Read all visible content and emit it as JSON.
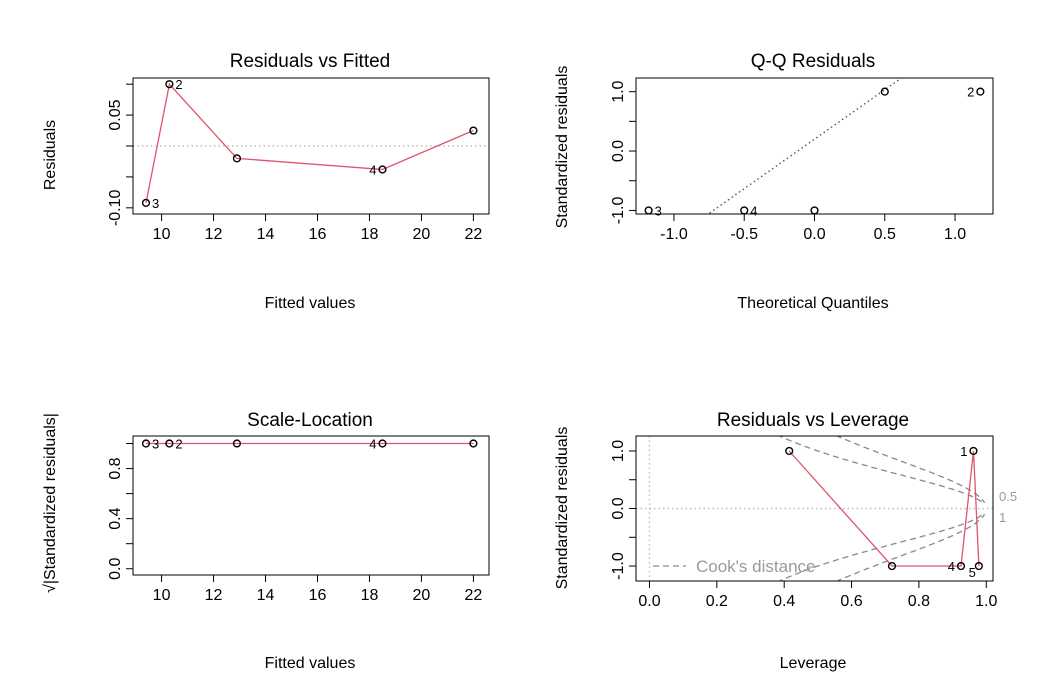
{
  "chart_data": [
    {
      "id": "rvf",
      "type": "scatter",
      "title": "Residuals vs Fitted",
      "xlabel": "Fitted values",
      "ylabel": "Residuals",
      "xlim": [
        8.9,
        22.6
      ],
      "ylim": [
        -0.11,
        0.11
      ],
      "xticks": [
        10,
        12,
        14,
        16,
        18,
        20,
        22
      ],
      "xtick_labels": [
        "10",
        "12",
        "14",
        "16",
        "18",
        "20",
        "22"
      ],
      "yticks": [
        -0.1,
        -0.05,
        0,
        0.05,
        0.1
      ],
      "ytick_labels": [
        "-0.10",
        "",
        "",
        "0.05",
        ""
      ],
      "refline": {
        "type": "h",
        "value": 0
      },
      "points": [
        {
          "x": 9.4,
          "y": -0.092,
          "label": "3",
          "lpos": "right"
        },
        {
          "x": 10.3,
          "y": 0.1,
          "label": "2",
          "lpos": "right"
        },
        {
          "x": 12.9,
          "y": -0.02,
          "label": "",
          "lpos": "right"
        },
        {
          "x": 18.5,
          "y": -0.038,
          "label": "4",
          "lpos": "left"
        },
        {
          "x": 22.0,
          "y": 0.025,
          "label": "",
          "lpos": "right"
        }
      ],
      "smoother": [
        [
          9.4,
          -0.092
        ],
        [
          10.3,
          0.1
        ],
        [
          12.9,
          -0.02
        ],
        [
          18.5,
          -0.038
        ],
        [
          22.0,
          0.025
        ]
      ]
    },
    {
      "id": "qq",
      "type": "scatter",
      "title": "Q-Q Residuals",
      "xlabel": "Theoretical Quantiles",
      "ylabel": "Standardized residuals",
      "xlim": [
        -1.27,
        1.27
      ],
      "ylim": [
        -1.06,
        1.23
      ],
      "xticks": [
        -1,
        -0.5,
        0,
        0.5,
        1
      ],
      "xtick_labels": [
        "-1.0",
        "-0.5",
        "0.0",
        "0.5",
        "1.0"
      ],
      "yticks": [
        -1,
        -0.5,
        0,
        0.5,
        1
      ],
      "ytick_labels": [
        "-1.0",
        "",
        "0.0",
        "",
        "1.0"
      ],
      "qqline": {
        "intercept": 0.2,
        "slope": 1.667
      },
      "points": [
        {
          "x": -1.18,
          "y": -1.0,
          "label": "3",
          "lpos": "right"
        },
        {
          "x": -0.5,
          "y": -1.0,
          "label": "4",
          "lpos": "right"
        },
        {
          "x": 0.0,
          "y": -1.0,
          "label": "",
          "lpos": "right"
        },
        {
          "x": 0.5,
          "y": 1.0,
          "label": "",
          "lpos": "right"
        },
        {
          "x": 1.18,
          "y": 1.0,
          "label": "2",
          "lpos": "left"
        }
      ]
    },
    {
      "id": "sl",
      "type": "scatter",
      "title": "Scale-Location",
      "xlabel": "Fitted values",
      "ylabel": "√|Standardized residuals|",
      "xlim": [
        8.9,
        22.6
      ],
      "ylim": [
        -0.05,
        1.06
      ],
      "xticks": [
        10,
        12,
        14,
        16,
        18,
        20,
        22
      ],
      "xtick_labels": [
        "10",
        "12",
        "14",
        "16",
        "18",
        "20",
        "22"
      ],
      "yticks": [
        0,
        0.2,
        0.4,
        0.6,
        0.8,
        1.0
      ],
      "ytick_labels": [
        "0.0",
        "",
        "0.4",
        "",
        "0.8",
        ""
      ],
      "points": [
        {
          "x": 9.4,
          "y": 1.0,
          "label": "3",
          "lpos": "right"
        },
        {
          "x": 10.3,
          "y": 1.0,
          "label": "2",
          "lpos": "right"
        },
        {
          "x": 12.9,
          "y": 1.0,
          "label": "",
          "lpos": "right"
        },
        {
          "x": 18.5,
          "y": 1.0,
          "label": "4",
          "lpos": "left"
        },
        {
          "x": 22.0,
          "y": 1.0,
          "label": "",
          "lpos": "right"
        }
      ],
      "smoother": [
        [
          9.4,
          1.0
        ],
        [
          22.0,
          1.0
        ]
      ]
    },
    {
      "id": "rvl",
      "type": "scatter",
      "title": "Residuals vs Leverage",
      "xlabel": "Leverage",
      "ylabel": "Standardized residuals",
      "xlim": [
        -0.04,
        1.02
      ],
      "ylim": [
        -1.26,
        1.26
      ],
      "xticks": [
        0,
        0.2,
        0.4,
        0.6,
        0.8,
        1.0
      ],
      "xtick_labels": [
        "0.0",
        "0.2",
        "0.4",
        "0.6",
        "0.8",
        "1.0"
      ],
      "yticks": [
        -1,
        -0.5,
        0,
        0.5,
        1
      ],
      "ytick_labels": [
        "-1.0",
        "",
        "0.0",
        "",
        "1.0"
      ],
      "refline": {
        "type": "h",
        "value": 0
      },
      "vrefline": {
        "value": 0
      },
      "points": [
        {
          "x": 0.415,
          "y": 1.0,
          "label": "",
          "lpos": "right"
        },
        {
          "x": 0.72,
          "y": -1.0,
          "label": "",
          "lpos": "right"
        },
        {
          "x": 0.925,
          "y": -1.0,
          "label": "4",
          "lpos": "left"
        },
        {
          "x": 0.962,
          "y": 1.0,
          "label": "1",
          "lpos": "left"
        },
        {
          "x": 0.978,
          "y": -1.0,
          "label": "5",
          "lpos": "left-below"
        }
      ],
      "smoother": [
        [
          0.415,
          1.0
        ],
        [
          0.72,
          -1.0
        ],
        [
          0.925,
          -1.0
        ],
        [
          0.962,
          1.0
        ],
        [
          0.978,
          -1.0
        ]
      ],
      "cook_levels": [
        0.5,
        1
      ],
      "cook_level_labels": [
        "0.5",
        "1"
      ],
      "cook_p": 2,
      "legend": "Cook's distance",
      "legend_position": "bottom-left"
    }
  ]
}
